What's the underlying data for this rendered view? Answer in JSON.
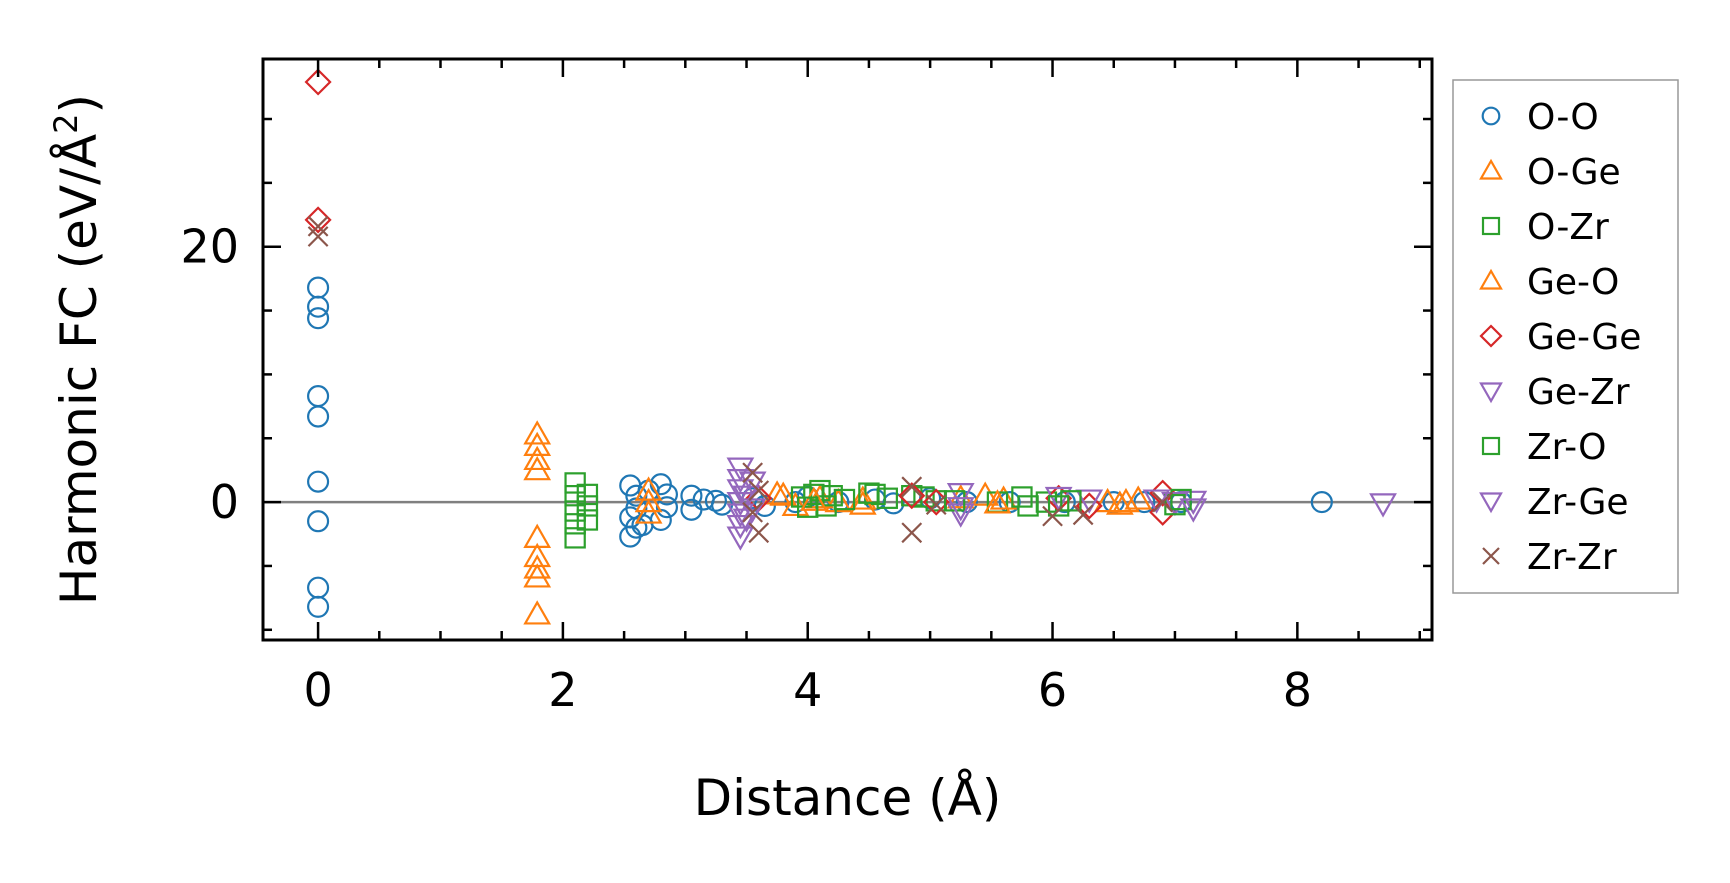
{
  "chart_data": {
    "type": "scatter",
    "xlabel": "Distance (Å)",
    "ylabel_main": "Harmonic FC (eV/Å",
    "ylabel_sup": "2",
    "ylabel_close": ")",
    "xlim": [
      -0.45,
      9.1
    ],
    "ylim": [
      -10.8,
      34.7
    ],
    "xticks": [
      0,
      2,
      4,
      6,
      8
    ],
    "xtick_labels": [
      "0",
      "2",
      "4",
      "6",
      "8"
    ],
    "yticks": [
      0,
      20
    ],
    "ytick_labels": [
      "0",
      "20"
    ],
    "x_minor_step": 0.5,
    "y_minor_step": 5,
    "zero_line": true,
    "grid": false,
    "legend_position": "outside-right",
    "series": [
      {
        "name": "O-O",
        "marker": "circle",
        "color": "#1f77b4",
        "points": [
          [
            0,
            16.8
          ],
          [
            0,
            15.3
          ],
          [
            0,
            14.4
          ],
          [
            0,
            8.3
          ],
          [
            0,
            6.7
          ],
          [
            0,
            1.6
          ],
          [
            0,
            -1.5
          ],
          [
            0,
            -6.7
          ],
          [
            0,
            -8.2
          ],
          [
            2.55,
            1.3
          ],
          [
            2.6,
            0.5
          ],
          [
            2.6,
            -0.5
          ],
          [
            2.55,
            -1.2
          ],
          [
            2.6,
            -2.0
          ],
          [
            2.55,
            -2.7
          ],
          [
            2.65,
            -1.8
          ],
          [
            2.7,
            0.9
          ],
          [
            2.8,
            1.4
          ],
          [
            2.85,
            0.6
          ],
          [
            2.85,
            -0.4
          ],
          [
            2.8,
            -1.4
          ],
          [
            3.05,
            0.5
          ],
          [
            3.05,
            -0.6
          ],
          [
            3.15,
            0.2
          ],
          [
            3.25,
            0.1
          ],
          [
            3.3,
            -0.2
          ],
          [
            3.55,
            0.3
          ],
          [
            3.65,
            -0.3
          ],
          [
            3.9,
            0.0
          ],
          [
            4.0,
            0.4
          ],
          [
            4.25,
            0.0
          ],
          [
            4.55,
            0.2
          ],
          [
            4.7,
            -0.1
          ],
          [
            5.0,
            0.3
          ],
          [
            5.3,
            0.0
          ],
          [
            5.65,
            0.0
          ],
          [
            6.1,
            0.0
          ],
          [
            6.5,
            0.0
          ],
          [
            6.75,
            0.0
          ],
          [
            7.05,
            0.0
          ],
          [
            8.2,
            0.0
          ]
        ]
      },
      {
        "name": "O-Ge",
        "marker": "triangle-up",
        "color": "#ff7f0e",
        "points": [
          [
            1.79,
            5.3
          ],
          [
            1.79,
            4.4
          ],
          [
            1.79,
            3.3
          ],
          [
            1.79,
            2.5
          ],
          [
            1.79,
            -2.8
          ],
          [
            1.79,
            -4.3
          ],
          [
            1.79,
            -5.2
          ],
          [
            1.79,
            -5.9
          ],
          [
            1.79,
            -8.8
          ],
          [
            2.7,
            0.9
          ],
          [
            2.7,
            0.0
          ],
          [
            2.7,
            -0.9
          ],
          [
            3.8,
            0.5
          ],
          [
            3.9,
            -0.3
          ],
          [
            4.1,
            0.3
          ],
          [
            4.25,
            0.0
          ],
          [
            4.45,
            0.2
          ],
          [
            5.25,
            0.3
          ],
          [
            5.45,
            0.5
          ],
          [
            5.6,
            0.2
          ],
          [
            6.45,
            0.0
          ],
          [
            6.6,
            0.0
          ],
          [
            6.7,
            0.2
          ]
        ]
      },
      {
        "name": "O-Zr",
        "marker": "square",
        "color": "#2ca02c",
        "points": [
          [
            2.1,
            1.5
          ],
          [
            2.1,
            0.5
          ],
          [
            2.1,
            -0.7
          ],
          [
            2.1,
            -1.7
          ],
          [
            2.1,
            -2.8
          ],
          [
            2.2,
            0.6
          ],
          [
            2.2,
            -0.3
          ],
          [
            2.2,
            -1.4
          ],
          [
            3.95,
            0.4
          ],
          [
            4.05,
            0.6
          ],
          [
            4.1,
            0.9
          ],
          [
            4.15,
            -0.3
          ],
          [
            4.2,
            0.5
          ],
          [
            4.55,
            0.6
          ],
          [
            4.65,
            0.3
          ],
          [
            4.85,
            0.5
          ],
          [
            4.95,
            0.4
          ],
          [
            5.05,
            0.1
          ],
          [
            5.55,
            0.0
          ],
          [
            5.75,
            0.4
          ],
          [
            5.95,
            0.0
          ]
        ]
      },
      {
        "name": "Ge-O",
        "marker": "triangle-up",
        "color": "#ff7f0e",
        "points": [
          [
            3.75,
            0.6
          ],
          [
            4.05,
            0.1
          ],
          [
            4.45,
            -0.2
          ],
          [
            5.55,
            -0.1
          ],
          [
            6.55,
            -0.2
          ]
        ]
      },
      {
        "name": "Ge-Ge",
        "marker": "diamond",
        "color": "#d62728",
        "points": [
          [
            0,
            32.9
          ],
          [
            0,
            22.1
          ],
          [
            3.6,
            0.3
          ],
          [
            4.85,
            0.5
          ],
          [
            5.05,
            0.0
          ],
          [
            6.05,
            0.3
          ],
          [
            6.3,
            -0.3
          ],
          [
            6.9,
            0.7
          ],
          [
            6.9,
            -0.8
          ]
        ]
      },
      {
        "name": "Ge-Zr",
        "marker": "triangle-down",
        "color": "#9467bd",
        "points": [
          [
            3.45,
            2.7
          ],
          [
            3.45,
            1.8
          ],
          [
            3.45,
            1.0
          ],
          [
            3.45,
            0.0
          ],
          [
            3.45,
            -0.9
          ],
          [
            3.45,
            -1.8
          ],
          [
            3.45,
            -2.7
          ],
          [
            3.55,
            1.6
          ],
          [
            3.55,
            -0.5
          ],
          [
            5.25,
            0.7
          ],
          [
            5.25,
            -0.9
          ],
          [
            6.05,
            0.4
          ],
          [
            6.3,
            0.2
          ],
          [
            7.0,
            0.0
          ],
          [
            7.15,
            0.1
          ],
          [
            8.7,
            -0.1
          ]
        ]
      },
      {
        "name": "Zr-O",
        "marker": "square",
        "color": "#2ca02c",
        "points": [
          [
            4.0,
            -0.4
          ],
          [
            4.3,
            0.2
          ],
          [
            4.5,
            0.7
          ],
          [
            5.2,
            0.1
          ],
          [
            5.8,
            -0.3
          ],
          [
            6.05,
            -0.3
          ],
          [
            6.15,
            0.1
          ],
          [
            7.0,
            -0.2
          ],
          [
            7.05,
            0.2
          ]
        ]
      },
      {
        "name": "Zr-Ge",
        "marker": "triangle-down",
        "color": "#9467bd",
        "points": [
          [
            3.5,
            0.5
          ],
          [
            3.5,
            -1.3
          ],
          [
            5.25,
            -0.4
          ],
          [
            7.15,
            -0.5
          ],
          [
            6.85,
            0.2
          ]
        ]
      },
      {
        "name": "Zr-Zr",
        "marker": "x",
        "color": "#8c564b",
        "points": [
          [
            0,
            20.8
          ],
          [
            0,
            21.6
          ],
          [
            3.55,
            2.3
          ],
          [
            3.6,
            0.9
          ],
          [
            3.55,
            -0.8
          ],
          [
            3.6,
            -2.4
          ],
          [
            4.85,
            1.2
          ],
          [
            4.85,
            -2.4
          ],
          [
            5.05,
            -0.2
          ],
          [
            6.0,
            -1.1
          ],
          [
            6.25,
            -1.0
          ],
          [
            6.9,
            0.0
          ]
        ]
      }
    ]
  }
}
